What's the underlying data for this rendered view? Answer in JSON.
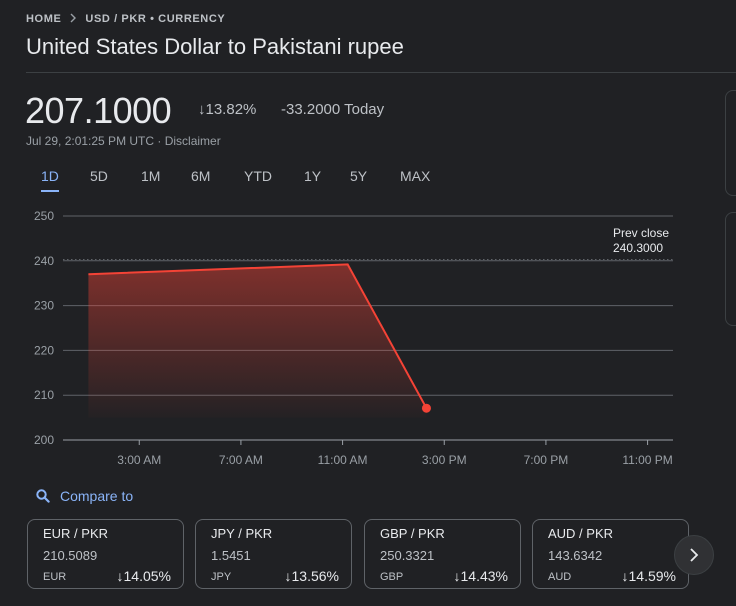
{
  "breadcrumb": {
    "home": "HOME",
    "section": "USD / PKR • CURRENCY"
  },
  "title": "United States Dollar to Pakistani rupee",
  "quote": {
    "price": "207.1000",
    "change_pct": "↓13.82%",
    "change_abs": "-33.2000 Today",
    "timestamp": "Jul 29, 2:01:25 PM UTC · Disclaimer"
  },
  "tabs": [
    {
      "label": "1D",
      "active": true
    },
    {
      "label": "5D"
    },
    {
      "label": "1M"
    },
    {
      "label": "6M"
    },
    {
      "label": "YTD"
    },
    {
      "label": "1Y"
    },
    {
      "label": "5Y"
    },
    {
      "label": "MAX"
    }
  ],
  "chart_data": {
    "type": "line",
    "y_ticks": [
      250,
      240,
      230,
      220,
      210,
      200
    ],
    "ylim": [
      200,
      250
    ],
    "x_ticks": [
      "3:00 AM",
      "7:00 AM",
      "11:00 AM",
      "3:00 PM",
      "7:00 PM",
      "11:00 PM"
    ],
    "xlim_hours": [
      0,
      24
    ],
    "series": [
      {
        "points": [
          [
            1.0,
            237
          ],
          [
            11.2,
            239.2
          ],
          [
            14.3,
            207.1
          ]
        ]
      }
    ],
    "prev_close": {
      "label_line1": "Prev close",
      "label_line2": "240.3000",
      "value": 240.3
    },
    "grid": true,
    "colors": {
      "line": "#f44336",
      "grid": "#3c4043"
    }
  },
  "compare": {
    "label": "Compare to",
    "cards": [
      {
        "pair": "EUR / PKR",
        "rate": "210.5089",
        "currency": "EUR",
        "change": "↓14.05%"
      },
      {
        "pair": "JPY / PKR",
        "rate": "1.5451",
        "currency": "JPY",
        "change": "↓13.56%"
      },
      {
        "pair": "GBP / PKR",
        "rate": "250.3321",
        "currency": "GBP",
        "change": "↓14.43%"
      },
      {
        "pair": "AUD / PKR",
        "rate": "143.6342",
        "currency": "AUD",
        "change": "↓14.59%"
      }
    ]
  },
  "icons": {
    "breadcrumb_sep": "chevron-right-icon",
    "compare": "search-icon",
    "next": "chevron-right-icon"
  }
}
